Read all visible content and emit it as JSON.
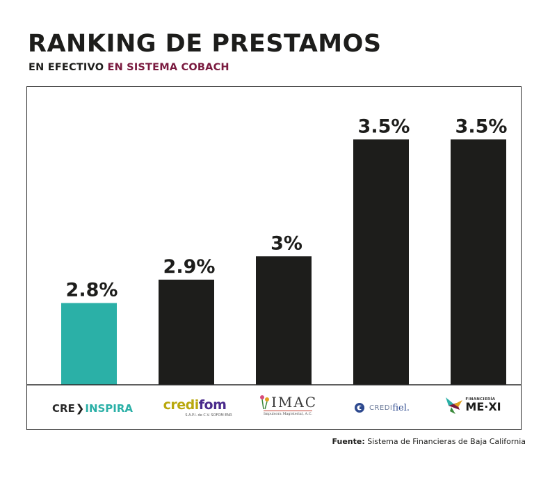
{
  "chart_data": {
    "type": "bar",
    "title": "RANKING DE PRESTAMOS",
    "subtitle_prefix": "EN EFECTIVO",
    "subtitle_accent": "EN SISTEMA COBACH",
    "categories": [
      "CREINSPIRA",
      "credifom",
      "IMAC",
      "CREDIfiel",
      "FINANCIERÍA MEXI"
    ],
    "values": [
      2.8,
      2.9,
      3.0,
      3.5,
      3.5
    ],
    "labels": [
      "2.8%",
      "2.9%",
      "3%",
      "3.5%",
      "3.5%"
    ],
    "highlight_index": 0,
    "ylim": [
      2.45,
      3.65
    ],
    "xlabel": "",
    "ylabel": ""
  },
  "colors": {
    "highlight": "#2bb0a7",
    "bar": "#1d1d1b",
    "accent": "#7a1a3f"
  },
  "logos": {
    "creinspira": {
      "pre": "CRE",
      "arrow": "❯",
      "post": "INSPIRA"
    },
    "credifom": {
      "pre": "credi",
      "post": "fom",
      "sub": "S.A.P.I. de C.V. SOFOM ENR"
    },
    "imac": {
      "main": "IMAC",
      "sub": "Impulsora Magisterial, A.C."
    },
    "credifiel": {
      "pre": "CREDI",
      "post": "fiel."
    },
    "mexi": {
      "top": "FINANCIERÍA",
      "main": "ME·XI"
    }
  },
  "source": {
    "label": "Fuente:",
    "text": "Sistema de Financieras de Baja California"
  }
}
